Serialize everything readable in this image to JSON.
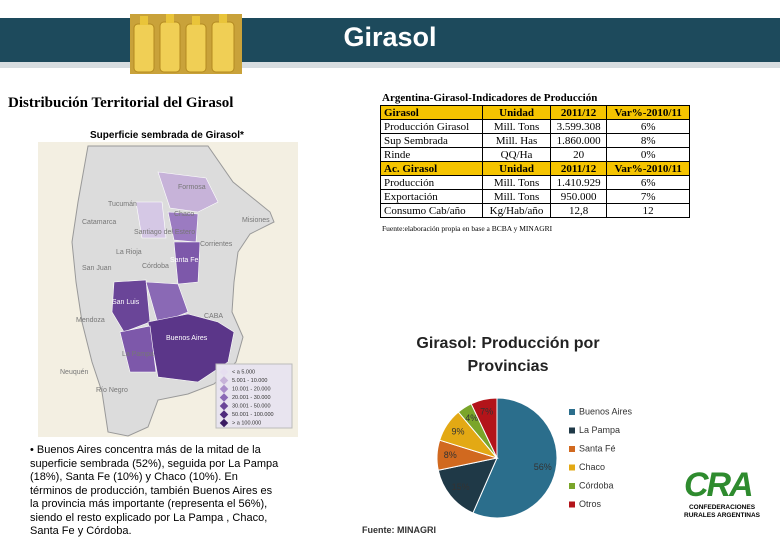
{
  "header": {
    "title": "Girasol"
  },
  "map": {
    "heading": "Distribución Territorial del Girasol",
    "title": "Superficie sembrada de Girasol*",
    "labels": [
      "Formosa",
      "Tucumán",
      "Chaco",
      "Catamarca",
      "Santiago del Estero",
      "Misiones",
      "Corrientes",
      "La Rioja",
      "Santa Fe",
      "San Juan",
      "Córdoba",
      "San Luis",
      "Mendoza",
      "CABA",
      "Buenos Aires",
      "La Pampa",
      "Neuquén",
      "Río Negro"
    ],
    "legend": [
      "< a 5.000",
      "5.001 - 10.000",
      "10.001 - 20.000",
      "20.001 - 30.000",
      "30.001 - 50.000",
      "50.001 - 100.000",
      "> a 100.000"
    ]
  },
  "description": "• Buenos Aires concentra más de la mitad de la superficie sembrada (52%), seguida por La Pampa (18%), Santa Fe (10%) y Chaco (10%). En términos de producción, también Buenos Aires es la provincia más importante (representa el 56%), siendo el resto explicado por La Pampa , Chaco, Santa Fe y  Córdoba.",
  "table": {
    "title": "Argentina-Girasol-Indicadores de Producción",
    "sections": [
      {
        "header": [
          "Girasol",
          "Unidad",
          "2011/12",
          "Var%-2010/11"
        ],
        "rows": [
          [
            "Producción Girasol",
            "Mill. Tons",
            "3.599.308",
            "6%"
          ],
          [
            "Sup Sembrada",
            "Mill. Has",
            "1.860.000",
            "8%"
          ],
          [
            "Rinde",
            "QQ/Ha",
            "20",
            "0%"
          ]
        ]
      },
      {
        "header": [
          "Ac. Girasol",
          "Unidad",
          "2011/12",
          "Var%-2010/11"
        ],
        "rows": [
          [
            "Producción",
            "Mill. Tons",
            "1.410.929",
            "6%"
          ],
          [
            "Exportación",
            "Mill. Tons",
            "950.000",
            "7%"
          ],
          [
            "Consumo Cab/año",
            "Kg/Hab/año",
            "12,8",
            "12"
          ]
        ]
      }
    ],
    "source": "Fuente:elaboración propia en base a  BCBA y MINAGRI"
  },
  "chart_data": {
    "type": "pie",
    "title": "Girasol: Producción por Provincias",
    "categories": [
      "Buenos Aires",
      "La Pampa",
      "Santa Fé",
      "Chaco",
      "Córdoba",
      "Otros"
    ],
    "values": [
      56,
      15,
      8,
      9,
      4,
      7
    ],
    "value_labels": [
      "56%",
      "15%",
      "8%",
      "9%",
      "4%",
      "7%"
    ],
    "colors": [
      "#2b6e8c",
      "#1f3947",
      "#d1691f",
      "#e3a914",
      "#7aa52a",
      "#b3141a"
    ],
    "source": "Fuente: MINAGRI"
  },
  "logo": {
    "mark": "CRA",
    "text": "CONFEDERACIONES RURALES ARGENTINAS"
  }
}
